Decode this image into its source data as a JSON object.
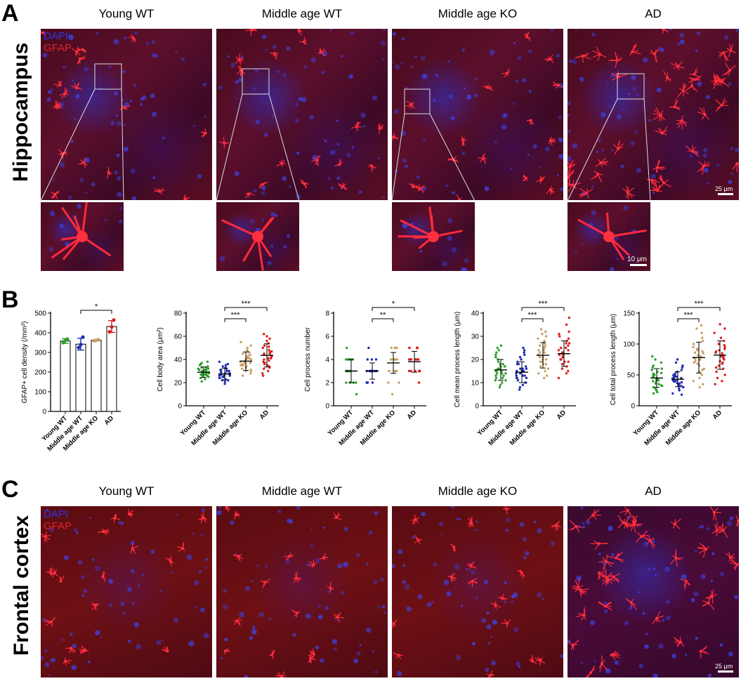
{
  "panels": {
    "a": {
      "letter": "A",
      "row_label": "Hippocampus",
      "columns": [
        "Young WT",
        "Middle age WT",
        "Middle age KO",
        "AD"
      ],
      "legend": {
        "dapi": "DAPI",
        "gfap": "GFAP"
      },
      "scalebar_main": "25 μm",
      "scalebar_inset": "10 μm"
    },
    "b": {
      "letter": "B"
    },
    "c": {
      "letter": "C",
      "row_label": "Frontal cortex",
      "columns": [
        "Young WT",
        "Middle age WT",
        "Middle age KO",
        "AD"
      ],
      "legend": {
        "dapi": "DAPI",
        "gfap": "GFAP"
      },
      "scalebar_main": "25 μm"
    }
  },
  "colors": {
    "young_wt": "#2ca02c",
    "middle_age_wt": "#1f2db4",
    "middle_age_ko": "#c8a064",
    "ad": "#dc1e1e",
    "dapi_text": "#2a36e8",
    "gfap_text": "#e42228"
  },
  "chart_data": [
    {
      "type": "bar",
      "ylabel": "GFAP+ cell density (/mm²)",
      "categories": [
        "Young WT",
        "Middle age WT",
        "Middle age KO",
        "AD"
      ],
      "values": [
        358,
        342,
        362,
        432
      ],
      "errors": [
        12,
        30,
        4,
        30
      ],
      "points": [
        [
          350,
          362,
          368
        ],
        [
          325,
          340,
          378
        ],
        [
          359,
          362,
          365
        ],
        [
          405,
          430,
          465
        ]
      ],
      "ylim": [
        0,
        500
      ],
      "yticks": [
        0,
        100,
        200,
        300,
        400,
        500
      ],
      "significance": [
        {
          "from": 1,
          "to": 3,
          "label": "*"
        }
      ]
    },
    {
      "type": "scatter",
      "ylabel": "Cell body area (μm²)",
      "categories": [
        "Young WT",
        "Middle age WT",
        "Middle age KO",
        "AD"
      ],
      "mean": [
        29,
        27.5,
        38.5,
        43.5
      ],
      "sd": [
        4.5,
        5,
        8,
        10
      ],
      "points": [
        [
          21,
          24,
          25,
          26,
          27,
          27,
          28,
          28,
          29,
          29,
          29,
          30,
          30,
          31,
          31,
          32,
          32,
          33,
          34,
          35,
          36,
          37,
          38,
          23,
          26,
          30,
          33,
          28,
          31,
          27
        ],
        [
          19,
          21,
          22,
          23,
          24,
          25,
          25,
          26,
          26,
          27,
          27,
          28,
          28,
          29,
          29,
          30,
          31,
          32,
          33,
          34,
          36,
          38,
          24,
          27,
          30,
          22,
          35,
          28,
          26,
          31
        ],
        [
          26,
          28,
          30,
          31,
          32,
          33,
          34,
          35,
          36,
          37,
          38,
          39,
          40,
          40,
          41,
          42,
          44,
          45,
          46,
          48,
          50,
          52,
          55,
          35,
          38,
          43,
          30,
          47,
          37,
          41
        ],
        [
          26,
          28,
          30,
          32,
          34,
          36,
          37,
          38,
          40,
          41,
          42,
          43,
          44,
          45,
          46,
          47,
          48,
          50,
          52,
          54,
          56,
          58,
          60,
          62,
          33,
          39,
          45,
          51,
          41,
          35
        ]
      ],
      "ylim": [
        0,
        80
      ],
      "yticks": [
        0,
        20,
        40,
        60,
        80
      ],
      "significance": [
        {
          "from": 1,
          "to": 2,
          "label": "***"
        },
        {
          "from": 1,
          "to": 3,
          "label": "***"
        }
      ]
    },
    {
      "type": "scatter",
      "ylabel": "Cell process number",
      "categories": [
        "Young WT",
        "Middle age WT",
        "Middle age KO",
        "AD"
      ],
      "mean": [
        3,
        3,
        3.7,
        3.8
      ],
      "sd": [
        1,
        0.7,
        0.9,
        0.9
      ],
      "points": [
        [
          1,
          2,
          2,
          2,
          2,
          3,
          3,
          3,
          3,
          3,
          3,
          3,
          3,
          3,
          4,
          4,
          4,
          4,
          4,
          5
        ],
        [
          2,
          2,
          2,
          2,
          3,
          3,
          3,
          3,
          3,
          3,
          3,
          3,
          3,
          4,
          4,
          4,
          5
        ],
        [
          1,
          2,
          2,
          3,
          3,
          3,
          3,
          3,
          3,
          4,
          4,
          4,
          4,
          4,
          4,
          5,
          5,
          5,
          5
        ],
        [
          2,
          3,
          3,
          3,
          3,
          3,
          3,
          3,
          4,
          4,
          4,
          4,
          4,
          4,
          5,
          5,
          5,
          5,
          5,
          5
        ]
      ],
      "ylim": [
        0,
        8
      ],
      "yticks": [
        0,
        2,
        4,
        6,
        8
      ],
      "significance": [
        {
          "from": 1,
          "to": 2,
          "label": "**"
        },
        {
          "from": 1,
          "to": 3,
          "label": "*"
        }
      ]
    },
    {
      "type": "scatter",
      "ylabel": "Cell mean process length (μm)",
      "categories": [
        "Young WT",
        "Middle age WT",
        "Middle age KO",
        "AD"
      ],
      "mean": [
        15.5,
        14.5,
        21.8,
        22.5
      ],
      "sd": [
        4.5,
        4.5,
        5.5,
        5.5
      ],
      "points": [
        [
          8,
          9,
          10,
          11,
          12,
          12,
          13,
          13,
          14,
          14,
          15,
          15,
          15,
          16,
          16,
          17,
          17,
          18,
          18,
          19,
          20,
          21,
          22,
          23,
          24,
          25,
          26,
          11,
          14,
          17
        ],
        [
          7,
          8,
          9,
          10,
          11,
          12,
          12,
          13,
          13,
          14,
          14,
          15,
          15,
          16,
          16,
          17,
          18,
          19,
          20,
          21,
          22,
          23,
          24,
          25,
          12,
          15,
          18,
          10,
          13,
          16
        ],
        [
          12,
          13,
          14,
          15,
          16,
          17,
          18,
          19,
          20,
          21,
          21,
          22,
          22,
          23,
          24,
          25,
          26,
          27,
          28,
          29,
          30,
          31,
          32,
          33,
          20,
          24,
          18,
          26,
          23,
          19
        ],
        [
          12,
          14,
          15,
          16,
          17,
          18,
          19,
          20,
          21,
          22,
          22,
          23,
          23,
          24,
          25,
          26,
          27,
          28,
          29,
          30,
          31,
          32,
          35,
          38,
          21,
          25,
          19,
          27,
          24,
          20
        ]
      ],
      "ylim": [
        0,
        40
      ],
      "yticks": [
        0,
        10,
        20,
        30,
        40
      ],
      "significance": [
        {
          "from": 1,
          "to": 2,
          "label": "***"
        },
        {
          "from": 1,
          "to": 3,
          "label": "***"
        }
      ]
    },
    {
      "type": "scatter",
      "ylabel": "Cell total process length (μm)",
      "categories": [
        "Young WT",
        "Middle age WT",
        "Middle age KO",
        "AD"
      ],
      "mean": [
        45,
        43,
        78,
        82
      ],
      "sd": [
        15,
        12,
        25,
        23
      ],
      "points": [
        [
          20,
          22,
          25,
          28,
          30,
          32,
          35,
          38,
          40,
          42,
          44,
          45,
          46,
          48,
          50,
          52,
          55,
          58,
          60,
          62,
          65,
          70,
          75,
          80,
          36,
          41,
          47,
          53,
          27,
          33
        ],
        [
          18,
          20,
          25,
          28,
          30,
          32,
          35,
          36,
          38,
          40,
          42,
          43,
          44,
          45,
          46,
          48,
          50,
          52,
          55,
          58,
          62,
          65,
          70,
          75,
          39,
          41,
          47,
          33,
          37,
          49
        ],
        [
          30,
          35,
          40,
          45,
          50,
          55,
          60,
          65,
          70,
          72,
          75,
          78,
          80,
          82,
          85,
          88,
          90,
          95,
          100,
          105,
          110,
          118,
          125,
          130,
          68,
          76,
          86,
          92,
          58,
          74
        ],
        [
          35,
          40,
          45,
          50,
          55,
          60,
          65,
          70,
          72,
          75,
          78,
          80,
          82,
          85,
          88,
          90,
          92,
          95,
          100,
          105,
          110,
          118,
          125,
          132,
          68,
          80,
          86,
          98,
          62,
          76
        ]
      ],
      "ylim": [
        0,
        150
      ],
      "yticks": [
        0,
        50,
        100,
        150
      ],
      "significance": [
        {
          "from": 1,
          "to": 2,
          "label": "***"
        },
        {
          "from": 1,
          "to": 3,
          "label": "***"
        }
      ]
    }
  ]
}
